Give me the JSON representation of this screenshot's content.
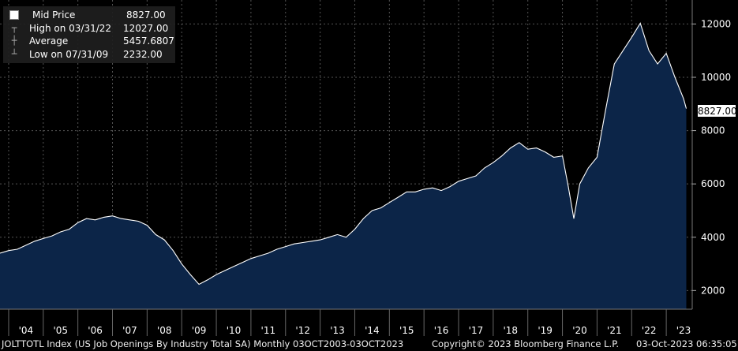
{
  "legend": {
    "rows": [
      {
        "label": "Mid Price",
        "value": "8827.00",
        "icon": "white-square"
      },
      {
        "label": "High on 03/31/22",
        "value": "12027.00",
        "icon": "high-marker"
      },
      {
        "label": "Average",
        "value": "5457.6807",
        "icon": "average-marker"
      },
      {
        "label": "Low on 07/31/09",
        "value": "2232.00",
        "icon": "low-marker"
      }
    ]
  },
  "last_value_label": "8827.00",
  "footer": {
    "ticker": "JOLTTOTL Index (US Job Openings By Industry Total SA)  Monthly 03OCT2003-03OCT2023",
    "copyright": "Copyright© 2023 Bloomberg Finance L.P.",
    "timestamp": "03-Oct-2023 06:35:05"
  },
  "colors": {
    "fill": "#0c2548",
    "line": "#ffffff",
    "background": "#000000",
    "grid": "#555555"
  },
  "chart_data": {
    "type": "area",
    "title": "",
    "xlabel": "",
    "ylabel": "",
    "xlim": [
      2003.75,
      2023.75
    ],
    "ylim": [
      1300,
      12900
    ],
    "y_ticks": [
      2000,
      4000,
      6000,
      8000,
      10000,
      12000
    ],
    "y_tick_labels": [
      "2000",
      "4000",
      "6000",
      "8000",
      "10000",
      "12000"
    ],
    "x_ticks": [
      2004,
      2005,
      2006,
      2007,
      2008,
      2009,
      2010,
      2011,
      2012,
      2013,
      2014,
      2015,
      2016,
      2017,
      2018,
      2019,
      2020,
      2021,
      2022,
      2023
    ],
    "x_tick_labels": [
      "'04",
      "'05",
      "'06",
      "'07",
      "'08",
      "'09",
      "'10",
      "'11",
      "'12",
      "'13",
      "'14",
      "'15",
      "'16",
      "'17",
      "'18",
      "'19",
      "'20",
      "'21",
      "'22",
      "'23"
    ],
    "grid": true,
    "y_axis_position": "right",
    "series": [
      {
        "x": [
          2003.75,
          2004.0,
          2004.25,
          2004.5,
          2004.75,
          2005.0,
          2005.25,
          2005.5,
          2005.75,
          2006.0,
          2006.25,
          2006.5,
          2006.75,
          2007.0,
          2007.25,
          2007.5,
          2007.75,
          2008.0,
          2008.25,
          2008.5,
          2008.75,
          2009.0,
          2009.25,
          2009.5,
          2009.75,
          2010.0,
          2010.25,
          2010.5,
          2010.75,
          2011.0,
          2011.25,
          2011.5,
          2011.75,
          2012.0,
          2012.25,
          2012.5,
          2012.75,
          2013.0,
          2013.25,
          2013.5,
          2013.75,
          2014.0,
          2014.25,
          2014.5,
          2014.75,
          2015.0,
          2015.25,
          2015.5,
          2015.75,
          2016.0,
          2016.25,
          2016.5,
          2016.75,
          2017.0,
          2017.25,
          2017.5,
          2017.75,
          2018.0,
          2018.25,
          2018.5,
          2018.75,
          2019.0,
          2019.25,
          2019.5,
          2019.75,
          2020.0,
          2020.17,
          2020.33,
          2020.5,
          2020.75,
          2021.0,
          2021.25,
          2021.5,
          2021.75,
          2022.0,
          2022.25,
          2022.5,
          2022.75,
          2023.0,
          2023.25,
          2023.5,
          2023.58
        ],
        "values": [
          3400,
          3500,
          3550,
          3700,
          3850,
          3950,
          4050,
          4200,
          4300,
          4550,
          4700,
          4650,
          4750,
          4800,
          4700,
          4650,
          4600,
          4450,
          4100,
          3900,
          3500,
          3000,
          2600,
          2232,
          2400,
          2600,
          2750,
          2900,
          3050,
          3200,
          3300,
          3400,
          3550,
          3650,
          3750,
          3800,
          3850,
          3900,
          4000,
          4100,
          4000,
          4300,
          4700,
          5000,
          5100,
          5300,
          5500,
          5700,
          5700,
          5800,
          5850,
          5750,
          5900,
          6100,
          6200,
          6300,
          6600,
          6800,
          7050,
          7350,
          7550,
          7300,
          7350,
          7200,
          7000,
          7050,
          5900,
          4700,
          6000,
          6600,
          7000,
          8800,
          10500,
          11000,
          11500,
          12027,
          11000,
          10500,
          10900,
          10000,
          9200,
          8827
        ]
      }
    ],
    "legend_position": "top-left"
  }
}
